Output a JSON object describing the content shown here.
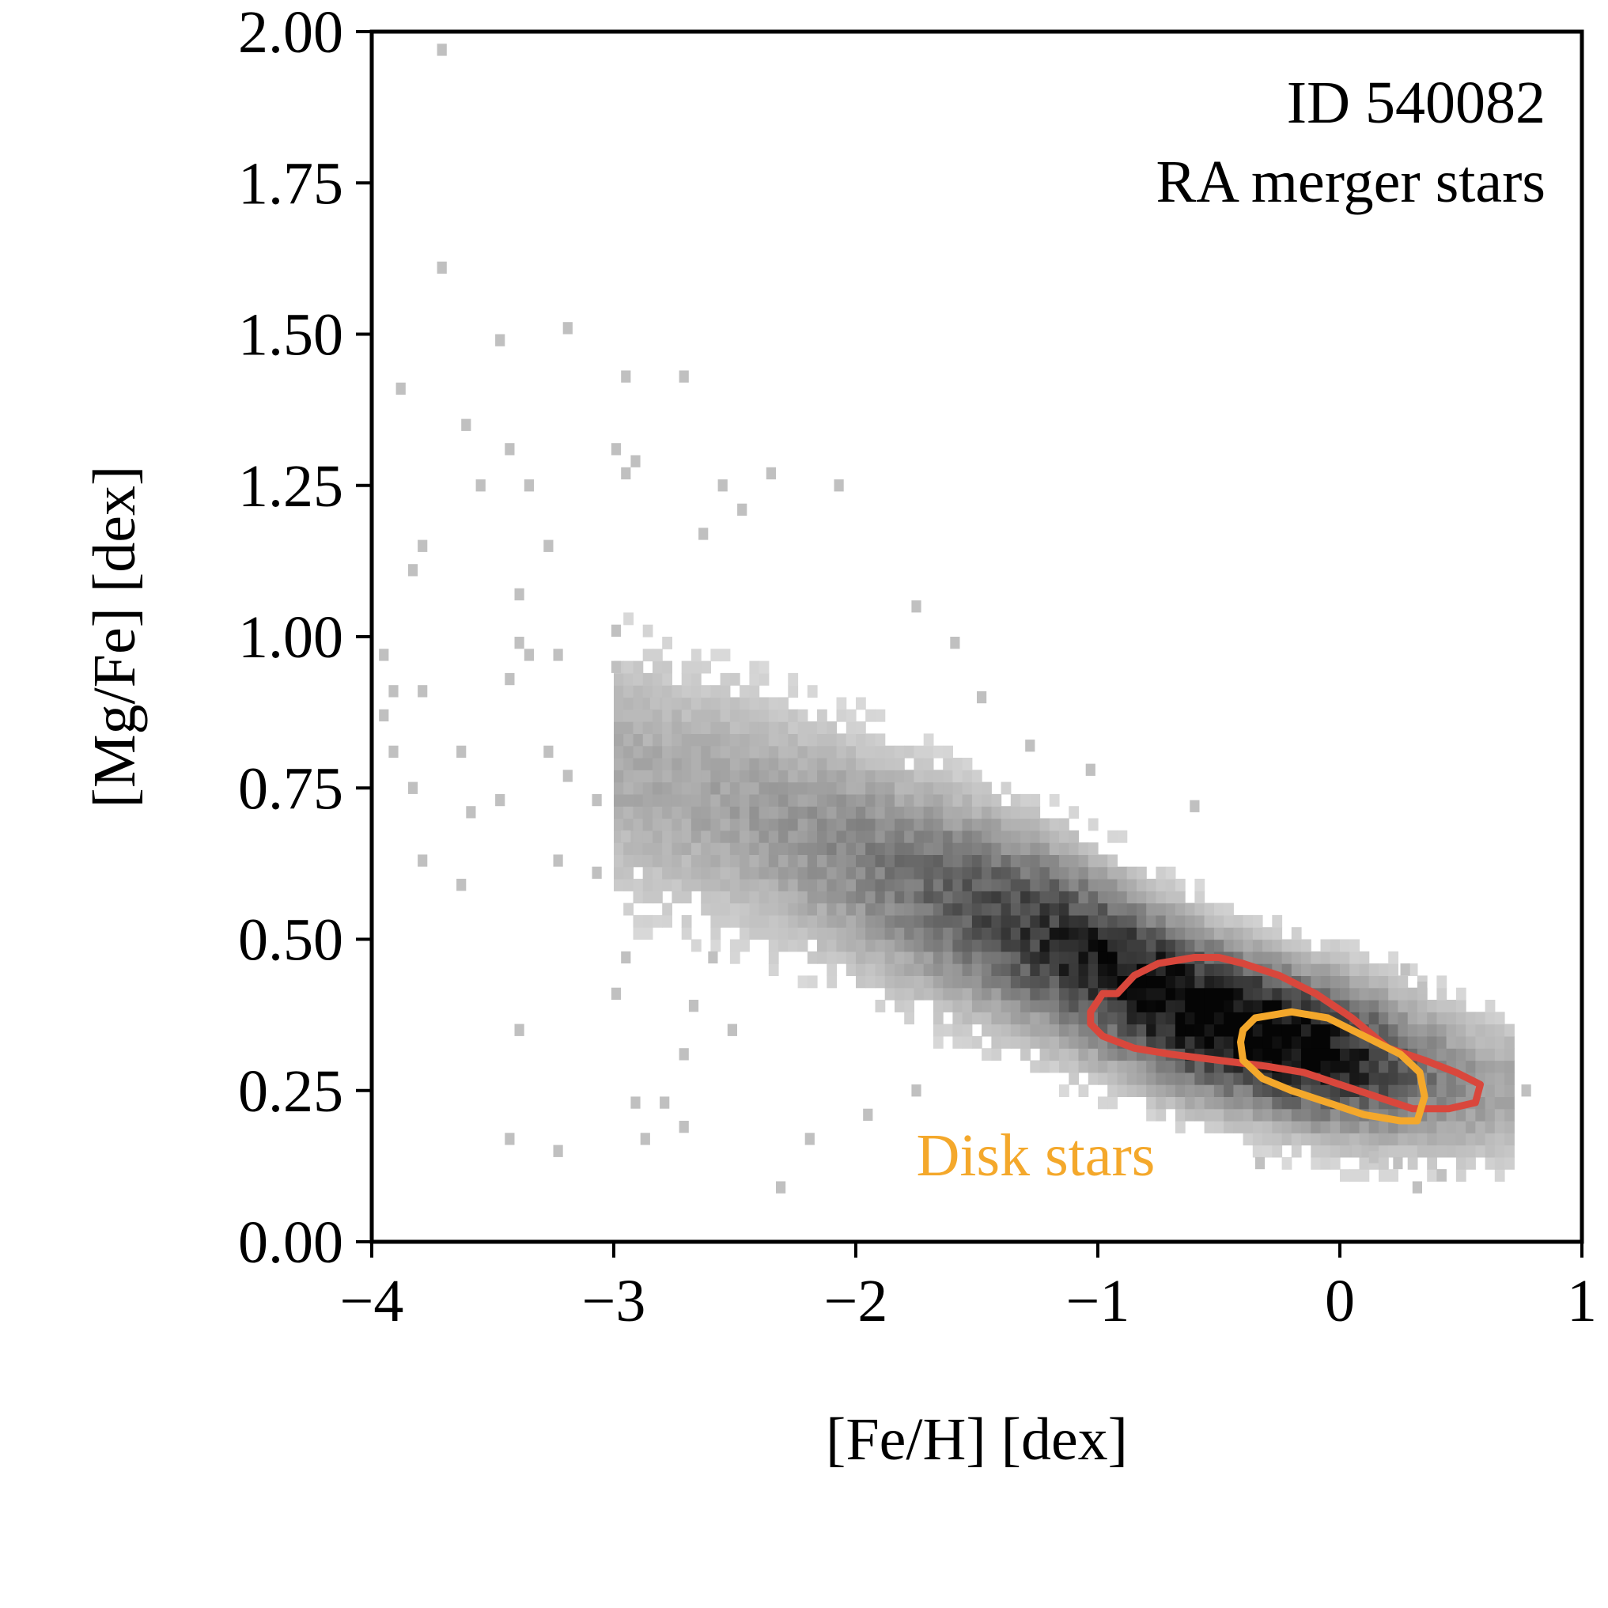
{
  "chart_data": {
    "type": "heatmap",
    "xlabel": "[Fe/H] [dex]",
    "ylabel": "[Mg/Fe] [dex]",
    "xlim": [
      -4,
      1
    ],
    "ylim": [
      0,
      2
    ],
    "x_ticks": [
      -4,
      -3,
      -2,
      -1,
      0,
      1
    ],
    "x_tick_labels": [
      "−4",
      "−3",
      "−2",
      "−1",
      "0",
      "1"
    ],
    "y_ticks": [
      0,
      0.25,
      0.5,
      0.75,
      1.0,
      1.25,
      1.5,
      1.75,
      2.0
    ],
    "y_tick_labels": [
      "0.00",
      "0.25",
      "0.50",
      "0.75",
      "1.00",
      "1.25",
      "1.50",
      "1.75",
      "2.00"
    ],
    "annotations": [
      "ID 540082",
      "RA merger stars"
    ],
    "grid": false,
    "colormap": "greys",
    "density_model": {
      "description_values": "2D histogram density of stars in [Fe/H] vs [Mg/Fe]",
      "ridge": [
        {
          "x": -2.5,
          "y": 0.72
        },
        {
          "x": -1.8,
          "y": 0.6
        },
        {
          "x": -1.2,
          "y": 0.5
        },
        {
          "x": -0.6,
          "y": 0.38
        },
        {
          "x": -0.2,
          "y": 0.33
        },
        {
          "x": 0.3,
          "y": 0.28
        },
        {
          "x": 0.6,
          "y": 0.25
        }
      ],
      "peak": {
        "x": -0.3,
        "y": 0.34
      }
    },
    "outliers": [
      [
        -3.73,
        1.97
      ],
      [
        -3.73,
        1.61
      ],
      [
        -3.49,
        1.49
      ],
      [
        -3.21,
        1.51
      ],
      [
        -3.9,
        1.41
      ],
      [
        -2.97,
        1.43
      ],
      [
        -2.73,
        1.43
      ],
      [
        -3.63,
        1.35
      ],
      [
        -3.45,
        1.31
      ],
      [
        -3.57,
        1.25
      ],
      [
        -3.37,
        1.25
      ],
      [
        -3.81,
        1.15
      ],
      [
        -3.85,
        1.11
      ],
      [
        -3.29,
        1.15
      ],
      [
        -3.41,
        1.07
      ],
      [
        -3.01,
        1.31
      ],
      [
        -2.93,
        1.29
      ],
      [
        -2.97,
        1.27
      ],
      [
        -3.41,
        0.99
      ],
      [
        -3.97,
        0.97
      ],
      [
        -3.81,
        0.91
      ],
      [
        -3.93,
        0.91
      ],
      [
        -3.37,
        0.97
      ],
      [
        -3.25,
        0.97
      ],
      [
        -3.97,
        0.87
      ],
      [
        -3.45,
        0.93
      ],
      [
        -3.65,
        0.81
      ],
      [
        -3.93,
        0.81
      ],
      [
        -3.85,
        0.75
      ],
      [
        -3.61,
        0.71
      ],
      [
        -3.49,
        0.73
      ],
      [
        -3.29,
        0.81
      ],
      [
        -3.21,
        0.77
      ],
      [
        -3.81,
        0.63
      ],
      [
        -3.65,
        0.59
      ],
      [
        -3.01,
        0.95
      ],
      [
        -3.01,
        1.01
      ],
      [
        -2.85,
        0.89
      ],
      [
        -3.09,
        0.73
      ],
      [
        -2.97,
        0.67
      ],
      [
        -3.25,
        0.63
      ],
      [
        -3.09,
        0.61
      ],
      [
        -3.41,
        0.35
      ],
      [
        -2.97,
        0.47
      ],
      [
        -3.01,
        0.41
      ],
      [
        -2.61,
        0.47
      ],
      [
        -3.45,
        0.17
      ],
      [
        -3.25,
        0.15
      ],
      [
        -2.93,
        0.23
      ],
      [
        -2.81,
        0.23
      ],
      [
        -2.73,
        0.19
      ],
      [
        -2.89,
        0.17
      ],
      [
        -2.33,
        0.09
      ],
      [
        -2.21,
        0.17
      ],
      [
        -1.97,
        0.21
      ],
      [
        -1.77,
        0.25
      ],
      [
        -2.73,
        0.31
      ],
      [
        -2.69,
        0.39
      ],
      [
        -2.53,
        0.35
      ],
      [
        -2.57,
        1.25
      ],
      [
        -2.37,
        1.27
      ],
      [
        -2.09,
        1.25
      ],
      [
        -2.49,
        1.21
      ],
      [
        -2.65,
        1.17
      ],
      [
        -1.77,
        1.05
      ],
      [
        -1.61,
        0.99
      ],
      [
        -1.5,
        0.9
      ],
      [
        -1.3,
        0.82
      ],
      [
        -1.05,
        0.78
      ],
      [
        -0.62,
        0.72
      ],
      [
        0.25,
        0.45
      ],
      [
        0.32,
        0.42
      ],
      [
        0.75,
        0.25
      ],
      [
        0.3,
        0.09
      ],
      [
        0.4,
        0.11
      ],
      [
        0.22,
        0.13
      ],
      [
        -0.35,
        0.13
      ],
      [
        0.05,
        0.15
      ],
      [
        0.12,
        0.14
      ]
    ],
    "contours": [
      {
        "name": "RA merger stars",
        "color": "#d9473c",
        "level": "high density",
        "points": [
          [
            -1.03,
            0.38
          ],
          [
            -0.98,
            0.41
          ],
          [
            -0.92,
            0.41
          ],
          [
            -0.85,
            0.44
          ],
          [
            -0.75,
            0.46
          ],
          [
            -0.6,
            0.47
          ],
          [
            -0.5,
            0.47
          ],
          [
            -0.4,
            0.46
          ],
          [
            -0.25,
            0.44
          ],
          [
            -0.1,
            0.41
          ],
          [
            0.05,
            0.37
          ],
          [
            0.2,
            0.32
          ],
          [
            0.35,
            0.3
          ],
          [
            0.48,
            0.28
          ],
          [
            0.58,
            0.26
          ],
          [
            0.56,
            0.23
          ],
          [
            0.45,
            0.22
          ],
          [
            0.3,
            0.22
          ],
          [
            0.15,
            0.24
          ],
          [
            0.0,
            0.26
          ],
          [
            -0.15,
            0.28
          ],
          [
            -0.3,
            0.29
          ],
          [
            -0.5,
            0.3
          ],
          [
            -0.7,
            0.31
          ],
          [
            -0.85,
            0.32
          ],
          [
            -0.98,
            0.34
          ],
          [
            -1.03,
            0.36
          ]
        ]
      },
      {
        "name": "Disk stars",
        "color": "#f4a82b",
        "level": "high density",
        "points": [
          [
            -0.4,
            0.35
          ],
          [
            -0.35,
            0.37
          ],
          [
            -0.2,
            0.38
          ],
          [
            -0.05,
            0.37
          ],
          [
            0.1,
            0.34
          ],
          [
            0.25,
            0.31
          ],
          [
            0.33,
            0.28
          ],
          [
            0.35,
            0.24
          ],
          [
            0.32,
            0.2
          ],
          [
            0.25,
            0.2
          ],
          [
            0.1,
            0.21
          ],
          [
            -0.05,
            0.23
          ],
          [
            -0.2,
            0.25
          ],
          [
            -0.32,
            0.27
          ],
          [
            -0.4,
            0.3
          ],
          [
            -0.41,
            0.33
          ]
        ]
      }
    ],
    "labels": {
      "disk_label": "Disk stars",
      "disk_label_color": "#f4a82b"
    }
  }
}
